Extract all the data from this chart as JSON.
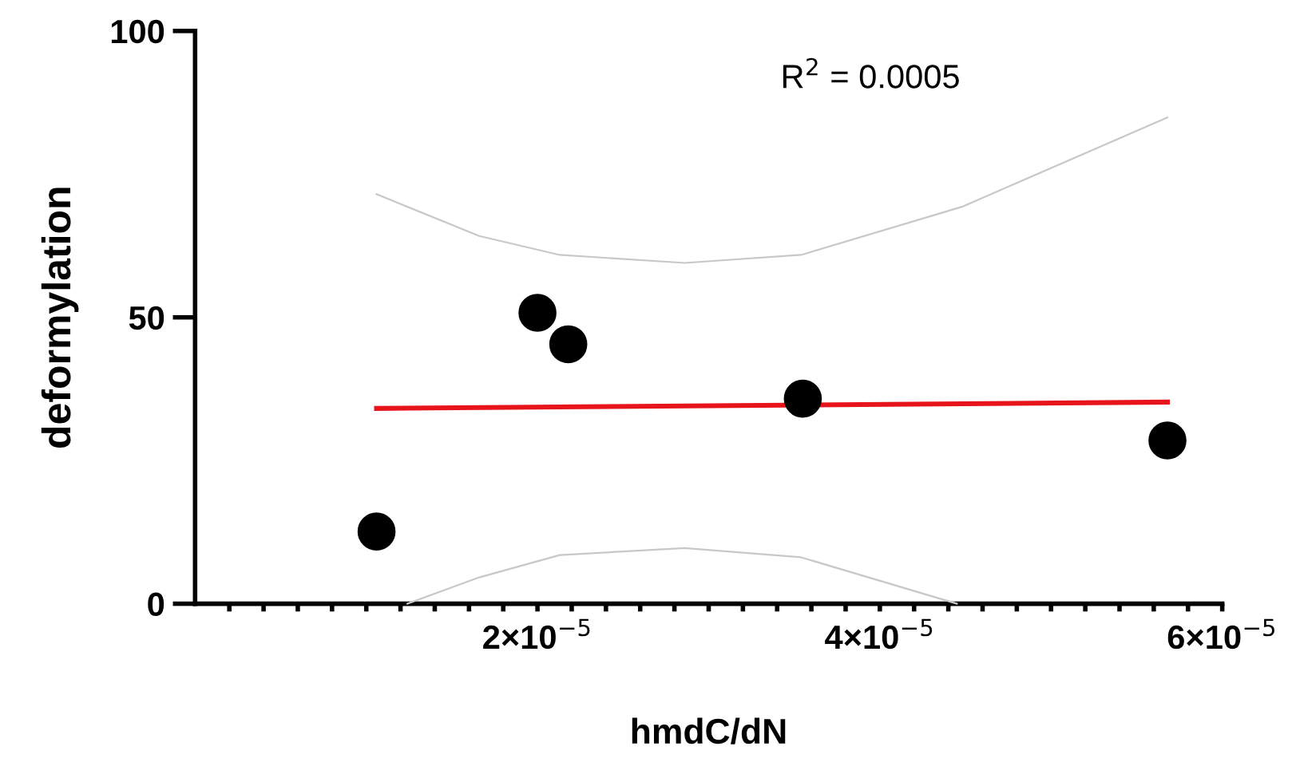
{
  "chart_data": {
    "type": "scatter",
    "xlabel": "hmdC/dN",
    "ylabel": "deformylation",
    "annotations": [
      "R$^{2}$ = 0.0005"
    ],
    "x": [
      1.06e-05,
      2e-05,
      2.18e-05,
      3.55e-05,
      5.68e-05
    ],
    "series": [
      {
        "color": "#000000",
        "marker": "circle",
        "values": [
          12.6,
          50.8,
          45.3,
          35.8,
          28.5
        ]
      },
      {
        "type": "line",
        "color": "#e8141c",
        "marker": "none",
        "x": [
          1.06e-05,
          5.68e-05
        ],
        "values": [
          34.1,
          35.2
        ]
      },
      {
        "type": "line",
        "color": "#c8c8c8",
        "marker": "none",
        "x": [
          1.06e-05,
          1.66e-05,
          2.13e-05,
          2.86e-05,
          3.54e-05,
          4.48e-05,
          5.68e-05
        ],
        "values": [
          71.5,
          64.2,
          60.9,
          59.5,
          60.9,
          69.3,
          84.9
        ]
      },
      {
        "type": "line",
        "color": "#c8c8c8",
        "marker": "none",
        "x": [
          1.24e-05,
          1.66e-05,
          2.13e-05,
          2.86e-05,
          3.54e-05,
          4.45e-05
        ],
        "values": [
          0,
          4.6,
          8.5,
          9.7,
          8.1,
          0
        ]
      }
    ],
    "xlim": [
      0,
      6e-05
    ],
    "xticks": [
      {
        "value": 2e-06,
        "label": null
      },
      {
        "value": 4e-06,
        "label": null
      },
      {
        "value": 6e-06,
        "label": null
      },
      {
        "value": 8e-06,
        "label": null
      },
      {
        "value": 1e-05,
        "label": null
      },
      {
        "value": 1.2e-05,
        "label": null
      },
      {
        "value": 1.4e-05,
        "label": null
      },
      {
        "value": 1.6e-05,
        "label": null
      },
      {
        "value": 1.8e-05,
        "label": null
      },
      {
        "value": 2e-05,
        "label": "2×10$^{−5}$"
      },
      {
        "value": 2.2e-05,
        "label": null
      },
      {
        "value": 2.4e-05,
        "label": null
      },
      {
        "value": 2.6e-05,
        "label": null
      },
      {
        "value": 2.8e-05,
        "label": null
      },
      {
        "value": 3e-05,
        "label": null
      },
      {
        "value": 3.2e-05,
        "label": null
      },
      {
        "value": 3.4e-05,
        "label": null
      },
      {
        "value": 3.6e-05,
        "label": null
      },
      {
        "value": 3.8e-05,
        "label": null
      },
      {
        "value": 4e-05,
        "label": "4×10$^{−5}$"
      },
      {
        "value": 4.2e-05,
        "label": null
      },
      {
        "value": 4.4e-05,
        "label": null
      },
      {
        "value": 4.6e-05,
        "label": null
      },
      {
        "value": 4.8e-05,
        "label": null
      },
      {
        "value": 5e-05,
        "label": null
      },
      {
        "value": 5.2e-05,
        "label": null
      },
      {
        "value": 5.4e-05,
        "label": null
      },
      {
        "value": 5.6e-05,
        "label": null
      },
      {
        "value": 5.8e-05,
        "label": null
      },
      {
        "value": 6e-05,
        "label": "6×10$^{−5}$"
      }
    ],
    "ylim": [
      0,
      100
    ],
    "yticks": [
      0,
      50,
      100
    ],
    "grid": false,
    "legend": false
  }
}
